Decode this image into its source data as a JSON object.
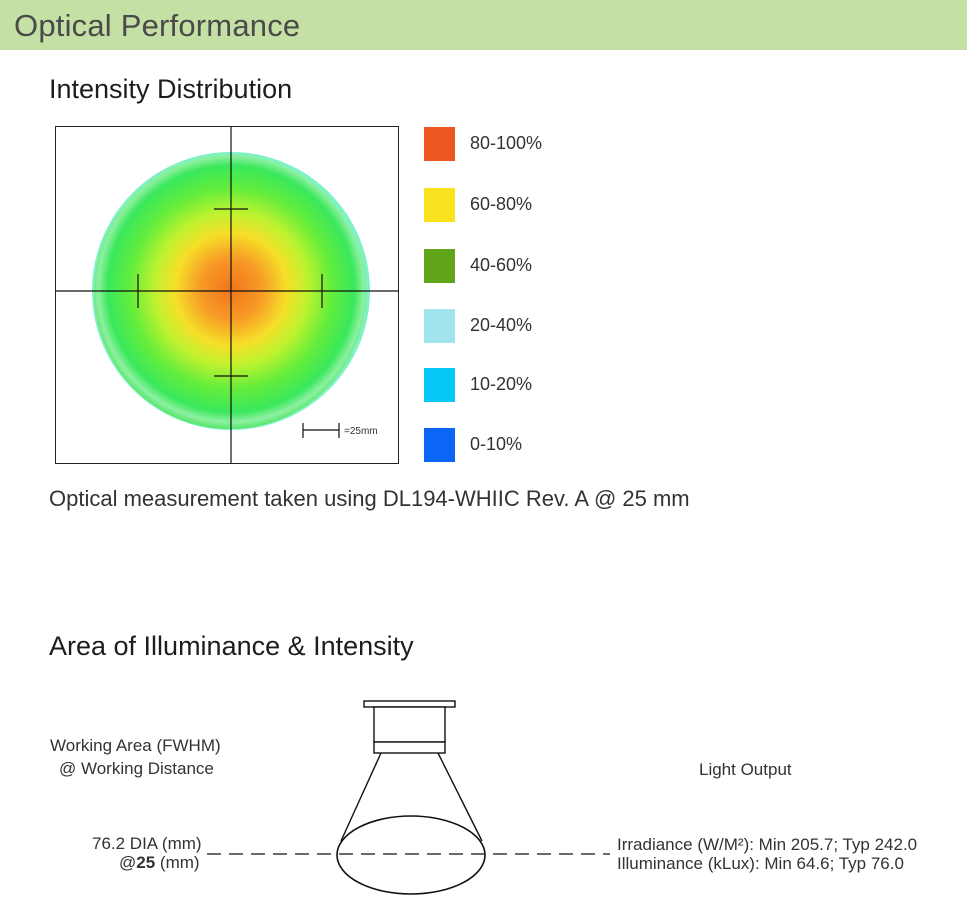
{
  "header": {
    "title": "Optical Performance"
  },
  "intensity": {
    "title": "Intensity Distribution",
    "scale_label": "=25mm",
    "legend": [
      {
        "label": "80-100%",
        "color": "#ec5620"
      },
      {
        "label": "60-80%",
        "color": "#fbe21e"
      },
      {
        "label": "40-60%",
        "color": "#60a51a"
      },
      {
        "label": "20-40%",
        "color": "#a2e4ee"
      },
      {
        "label": "10-20%",
        "color": "#05c8f8"
      },
      {
        "label": "0-10%",
        "color": "#0b66f6"
      }
    ],
    "caption": "Optical measurement taken using DL194-WHIIC Rev. A @ 25 mm"
  },
  "area": {
    "title": "Area of Illuminance & Intensity",
    "working_area_line1": "Working Area (FWHM)",
    "working_area_line2": "@ Working Distance",
    "light_output": "Light Output",
    "diameter": "76.2 DIA (mm)",
    "distance_prefix": "@",
    "distance_value": "25",
    "distance_unit": " (mm)",
    "irradiance": "Irradiance (W/M²): Min 205.7; Typ 242.0",
    "illuminance": "Illuminance  (kLux):   Min 64.6; Typ 76.0"
  }
}
